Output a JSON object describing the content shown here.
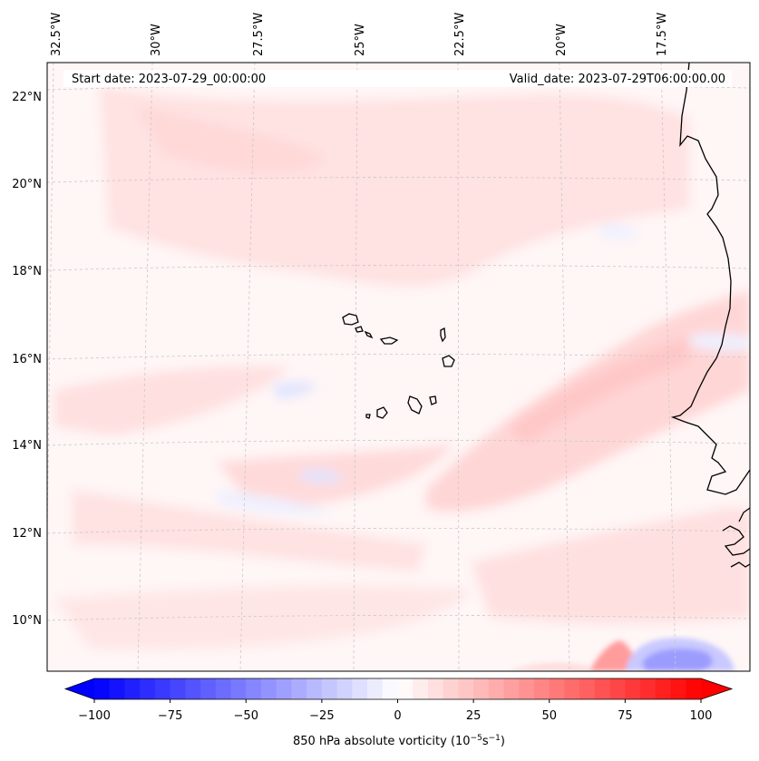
{
  "header": {
    "start_date": "Start date: 2023-07-29_00:00:00",
    "valid_date": "Valid_date: 2023-07-29T06:00:00.00"
  },
  "map": {
    "lon_labels": [
      "32.5°W",
      "30°W",
      "27.5°W",
      "25°W",
      "22.5°W",
      "20°W",
      "17.5°W"
    ],
    "lat_labels": [
      "22°N",
      "20°N",
      "18°N",
      "16°N",
      "14°N",
      "12°N",
      "10°N"
    ],
    "colors": {
      "background": "#fff6f6",
      "light_red": "#ffe2e2",
      "mid_red": "#ffcdcd",
      "strong_red": "#ff9c9c",
      "light_blue": "#eef0ff",
      "mid_blue": "#c9c9ff",
      "strong_blue": "#9c9cff",
      "coast": "#000000",
      "grid": "#c8c8c8"
    }
  },
  "colorbar": {
    "tick_labels": [
      "−100",
      "−75",
      "−50",
      "−25",
      "0",
      "25",
      "50",
      "75",
      "100"
    ],
    "vmin": -100,
    "vmax": 100,
    "levels": 40,
    "label_main": "850 hPa absolute vorticity (10",
    "label_exp1": "−5",
    "label_mid": "s",
    "label_exp2": "−1",
    "label_end": ")"
  }
}
